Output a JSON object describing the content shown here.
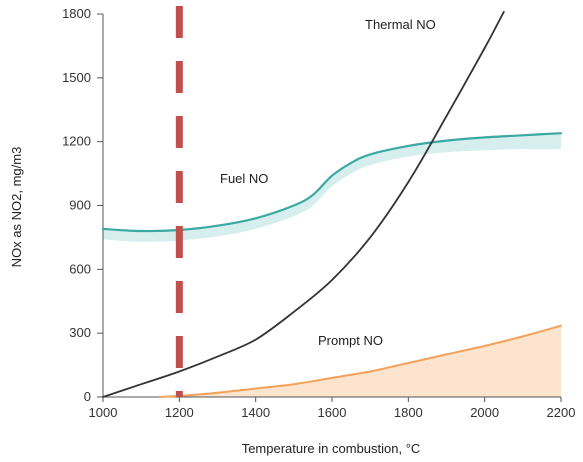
{
  "chart_data": {
    "type": "line",
    "xlabel": "Temperature in combustion, °C",
    "ylabel": "NOx as NO2, mg/m3",
    "xlim": [
      1000,
      2200
    ],
    "ylim": [
      0,
      1800
    ],
    "x_ticks": [
      "1000",
      "1200",
      "1400",
      "1600",
      "1800",
      "2000",
      "2200"
    ],
    "y_ticks": [
      "0",
      "300",
      "600",
      "900",
      "1200",
      "1500",
      "1800"
    ],
    "grid": false,
    "series": [
      {
        "name": "Thermal NO",
        "color": "#333333",
        "x": [
          1000,
          1100,
          1200,
          1300,
          1400,
          1500,
          1600,
          1700,
          1800,
          1900,
          2000,
          2050
        ],
        "y": [
          0,
          60,
          120,
          190,
          270,
          400,
          550,
          750,
          1010,
          1320,
          1640,
          1810
        ]
      },
      {
        "name": "Fuel NO",
        "color": "#3aa9a2",
        "band_color": "#d6eeee",
        "x": [
          1000,
          1100,
          1200,
          1300,
          1400,
          1500,
          1550,
          1600,
          1650,
          1700,
          1800,
          1900,
          2000,
          2100,
          2200
        ],
        "y": [
          790,
          780,
          785,
          805,
          840,
          900,
          950,
          1040,
          1100,
          1140,
          1180,
          1205,
          1220,
          1230,
          1240
        ],
        "band_low": [
          740,
          730,
          735,
          755,
          790,
          850,
          900,
          990,
          1050,
          1090,
          1130,
          1150,
          1160,
          1165,
          1165
        ]
      },
      {
        "name": "Prompt NO",
        "color": "#f5a15a",
        "fill_color": "#fce4cf",
        "x": [
          1150,
          1200,
          1300,
          1400,
          1500,
          1600,
          1700,
          1800,
          1900,
          2000,
          2100,
          2200
        ],
        "y": [
          0,
          5,
          20,
          40,
          60,
          90,
          120,
          160,
          200,
          240,
          285,
          335
        ]
      }
    ],
    "reference_line": {
      "x": 1200,
      "color": "#c0504d",
      "style": "dashed"
    }
  }
}
